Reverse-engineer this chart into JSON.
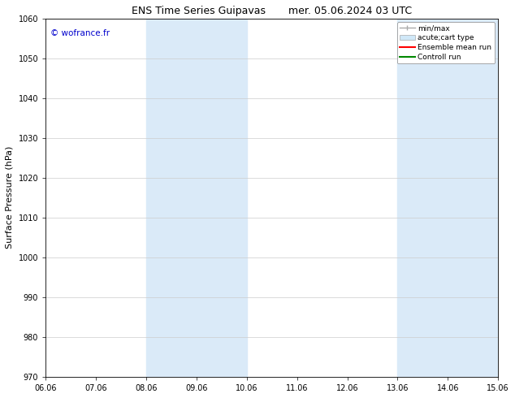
{
  "title_left": "ENS Time Series Guipavas",
  "title_right": "mer. 05.06.2024 03 UTC",
  "ylabel": "Surface Pressure (hPa)",
  "ylim": [
    970,
    1060
  ],
  "yticks": [
    970,
    980,
    990,
    1000,
    1010,
    1020,
    1030,
    1040,
    1050,
    1060
  ],
  "xtick_labels": [
    "06.06",
    "07.06",
    "08.06",
    "09.06",
    "10.06",
    "11.06",
    "12.06",
    "13.06",
    "14.06",
    "15.06"
  ],
  "xtick_positions": [
    0,
    1,
    2,
    3,
    4,
    5,
    6,
    7,
    8,
    9
  ],
  "shaded_regions": [
    {
      "xmin": 2,
      "xmax": 4,
      "color": "#daeaf8"
    },
    {
      "xmin": 7,
      "xmax": 9,
      "color": "#daeaf8"
    }
  ],
  "watermark_text": "© wofrance.fr",
  "watermark_color": "#0000cc",
  "legend_items": [
    {
      "label": "min/max",
      "color": "#aaaaaa",
      "style": "line_with_caps"
    },
    {
      "label": "acute;cart type",
      "color": "#d0e8f8",
      "style": "filled_rect"
    },
    {
      "label": "Ensemble mean run",
      "color": "#ff0000",
      "style": "line"
    },
    {
      "label": "Controll run",
      "color": "#008800",
      "style": "line"
    }
  ],
  "bg_color": "#ffffff",
  "grid_color": "#cccccc",
  "title_fontsize": 9,
  "tick_fontsize": 7,
  "ylabel_fontsize": 8,
  "legend_fontsize": 6.5,
  "watermark_fontsize": 7.5
}
